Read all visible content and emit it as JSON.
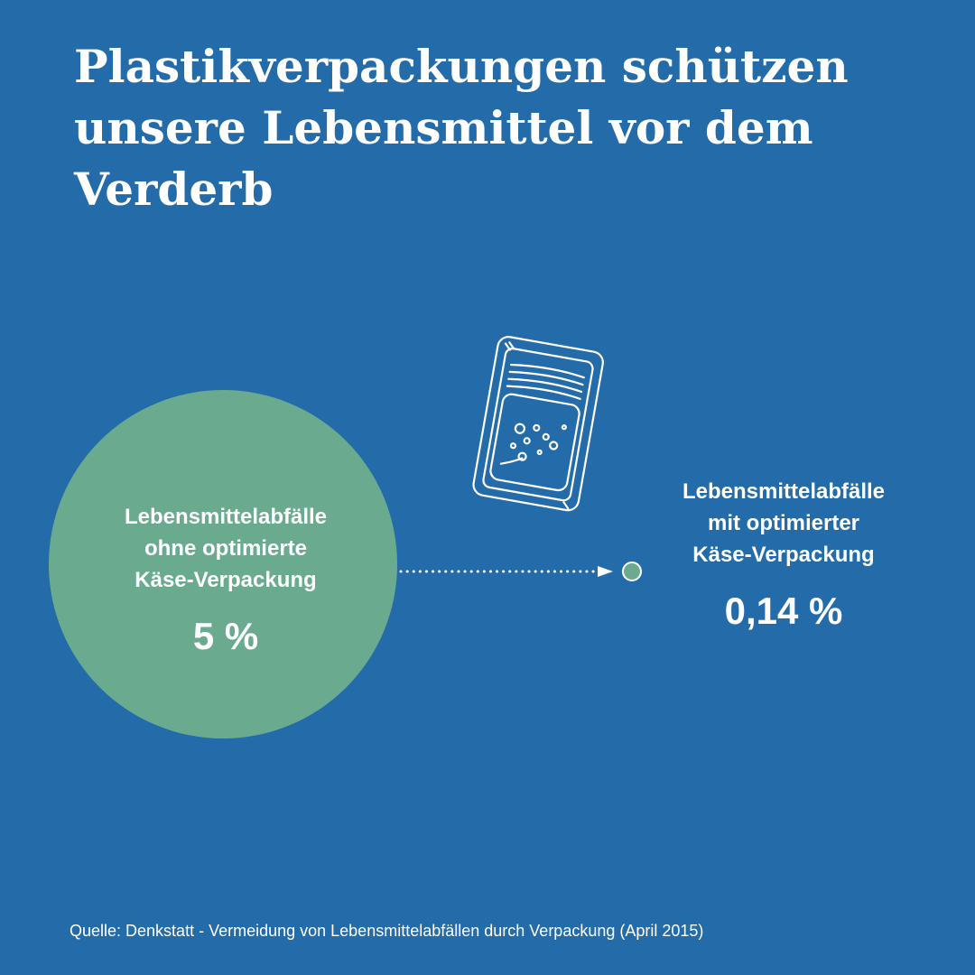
{
  "title": {
    "line1": "Plastikverpackungen schützen",
    "line2": "unsere Lebensmittel vor dem",
    "line3": "Verderb"
  },
  "chart_data": {
    "type": "bubble",
    "unit": "%",
    "items": [
      {
        "label_lines": [
          "Lebensmittelabfälle",
          "ohne optimierte",
          "Käse-Verpackung"
        ],
        "value": 5,
        "display": "5 %",
        "color": "#6aab90"
      },
      {
        "label_lines": [
          "Lebensmittelabfälle",
          "mit optimierter",
          "Käse-Verpackung"
        ],
        "value": 0.14,
        "display": "0,14 %",
        "color": "#6aab90"
      }
    ]
  },
  "icon": "cheese-package-icon",
  "colors": {
    "background": "#236ba9",
    "bubble": "#6aab90",
    "text": "#ffffff"
  },
  "source": "Quelle: Denkstatt - Vermeidung von Lebensmittelabfällen durch Verpackung (April 2015)"
}
